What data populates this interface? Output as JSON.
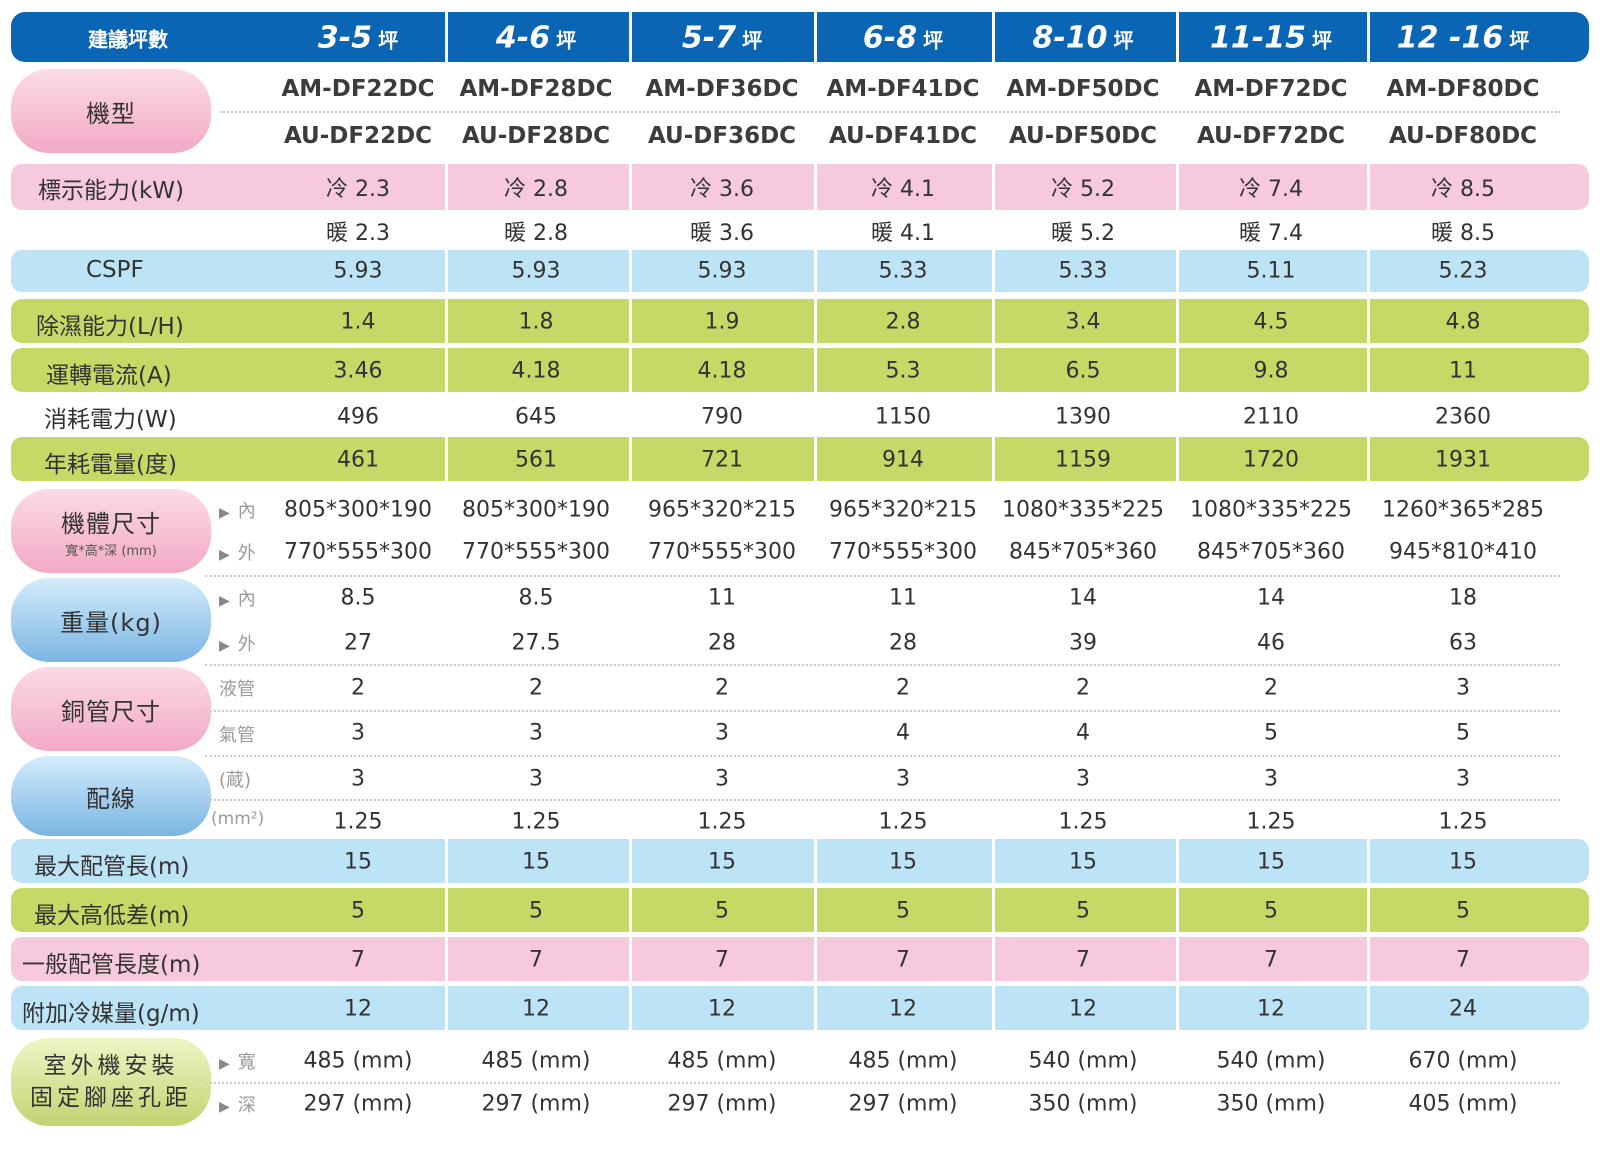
{
  "header": {
    "first": "建議坪數",
    "unit": "坪",
    "ranges": [
      "3-5",
      "4-6",
      "5-7",
      "6-8",
      "8-10",
      "11-15",
      "12 -16"
    ]
  },
  "labels": {
    "model": "機型",
    "capacity": "標示能力(kW)",
    "cspf": "CSPF",
    "dehum": "除濕能力(L/H)",
    "current": "運轉電流(A)",
    "power": "消耗電力(W)",
    "annual": "年耗電量(度)",
    "size": "機體尺寸",
    "size_sub": "寬*高*深 (mm)",
    "weight": "重量(kg)",
    "pipe": "銅管尺寸",
    "wiring": "配線",
    "max_len": "最大配管長(m)",
    "max_height": "最大高低差(m)",
    "general_len": "一般配管長度(m)",
    "refrigerant": "附加冷媒量(g/m)",
    "mount_line1": "室外機安裝",
    "mount_line2": "固定腳座孔距"
  },
  "sublabels": {
    "inner": "內",
    "outer": "外",
    "liquid": "液管",
    "gas": "氣管",
    "cores": "(蔵)",
    "mm2": "(mm²)",
    "width": "寬",
    "depth": "深"
  },
  "icons": {
    "bullet": "triangle-right"
  },
  "colors": {
    "header": "#0a65b4",
    "pink": "#f6c9de",
    "light_blue": "#bde3f6",
    "green": "#c6d865"
  },
  "rows": {
    "model_in": [
      "AM-DF22DC",
      "AM-DF28DC",
      "AM-DF36DC",
      "AM-DF41DC",
      "AM-DF50DC",
      "AM-DF72DC",
      "AM-DF80DC"
    ],
    "model_out": [
      "AU-DF22DC",
      "AU-DF28DC",
      "AU-DF36DC",
      "AU-DF41DC",
      "AU-DF50DC",
      "AU-DF72DC",
      "AU-DF80DC"
    ],
    "cool": [
      "冷  2.3",
      "冷  2.8",
      "冷  3.6",
      "冷  4.1",
      "冷  5.2",
      "冷  7.4",
      "冷  8.5"
    ],
    "heat": [
      "暖  2.3",
      "暖  2.8",
      "暖  3.6",
      "暖  4.1",
      "暖  5.2",
      "暖  7.4",
      "暖  8.5"
    ],
    "cspf": [
      "5.93",
      "5.93",
      "5.93",
      "5.33",
      "5.33",
      "5.11",
      "5.23"
    ],
    "dehum": [
      "1.4",
      "1.8",
      "1.9",
      "2.8",
      "3.4",
      "4.5",
      "4.8"
    ],
    "current": [
      "3.46",
      "4.18",
      "4.18",
      "5.3",
      "6.5",
      "9.8",
      "11"
    ],
    "power": [
      "496",
      "645",
      "790",
      "1150",
      "1390",
      "2110",
      "2360"
    ],
    "annual": [
      "461",
      "561",
      "721",
      "914",
      "1159",
      "1720",
      "1931"
    ],
    "size_in": [
      "805*300*190",
      "805*300*190",
      "965*320*215",
      "965*320*215",
      "1080*335*225",
      "1080*335*225",
      "1260*365*285"
    ],
    "size_out": [
      "770*555*300",
      "770*555*300",
      "770*555*300",
      "770*555*300",
      "845*705*360",
      "845*705*360",
      "945*810*410"
    ],
    "weight_in": [
      "8.5",
      "8.5",
      "11",
      "11",
      "14",
      "14",
      "18"
    ],
    "weight_out": [
      "27",
      "27.5",
      "28",
      "28",
      "39",
      "46",
      "63"
    ],
    "pipe_liquid": [
      "2",
      "2",
      "2",
      "2",
      "2",
      "2",
      "3"
    ],
    "pipe_gas": [
      "3",
      "3",
      "3",
      "4",
      "4",
      "5",
      "5"
    ],
    "wire_cores": [
      "3",
      "3",
      "3",
      "3",
      "3",
      "3",
      "3"
    ],
    "wire_mm2": [
      "1.25",
      "1.25",
      "1.25",
      "1.25",
      "1.25",
      "1.25",
      "1.25"
    ],
    "max_len": [
      "15",
      "15",
      "15",
      "15",
      "15",
      "15",
      "15"
    ],
    "max_height": [
      "5",
      "5",
      "5",
      "5",
      "5",
      "5",
      "5"
    ],
    "general_len": [
      "7",
      "7",
      "7",
      "7",
      "7",
      "7",
      "7"
    ],
    "refrigerant": [
      "12",
      "12",
      "12",
      "12",
      "12",
      "12",
      "24"
    ],
    "mount_w": [
      "485 (mm)",
      "485 (mm)",
      "485 (mm)",
      "485 (mm)",
      "540 (mm)",
      "540 (mm)",
      "670 (mm)"
    ],
    "mount_d": [
      "297 (mm)",
      "297 (mm)",
      "297 (mm)",
      "297 (mm)",
      "350 (mm)",
      "350 (mm)",
      "405 (mm)"
    ]
  }
}
